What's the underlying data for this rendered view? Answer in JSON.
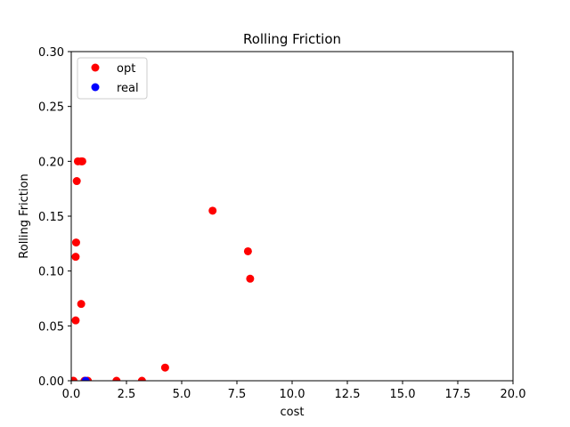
{
  "chart_data": {
    "type": "scatter",
    "title": "Rolling Friction",
    "xlabel": "cost",
    "ylabel": "Rolling Friction",
    "xlim": [
      0,
      20
    ],
    "ylim": [
      0,
      0.3
    ],
    "x_ticks": [
      "0.0",
      "2.5",
      "5.0",
      "7.5",
      "10.0",
      "12.5",
      "15.0",
      "17.5",
      "20.0"
    ],
    "y_ticks": [
      "0.00",
      "0.05",
      "0.10",
      "0.15",
      "0.20",
      "0.25",
      "0.30"
    ],
    "grid": false,
    "legend_position": "upper left",
    "series": [
      {
        "name": "opt",
        "color": "#ff0000",
        "points": [
          {
            "x": 0.1,
            "y": 0.0
          },
          {
            "x": 0.2,
            "y": 0.055
          },
          {
            "x": 0.2,
            "y": 0.113
          },
          {
            "x": 0.22,
            "y": 0.126
          },
          {
            "x": 0.25,
            "y": 0.182
          },
          {
            "x": 0.3,
            "y": 0.2
          },
          {
            "x": 0.45,
            "y": 0.2
          },
          {
            "x": 0.5,
            "y": 0.2
          },
          {
            "x": 0.45,
            "y": 0.07
          },
          {
            "x": 0.6,
            "y": 0.0
          },
          {
            "x": 0.75,
            "y": 0.0
          },
          {
            "x": 2.05,
            "y": 0.0
          },
          {
            "x": 3.2,
            "y": 0.0
          },
          {
            "x": 4.25,
            "y": 0.012
          },
          {
            "x": 6.4,
            "y": 0.155
          },
          {
            "x": 8.0,
            "y": 0.118
          },
          {
            "x": 8.1,
            "y": 0.093
          }
        ]
      },
      {
        "name": "real",
        "color": "#0000ff",
        "points": [
          {
            "x": 0.65,
            "y": 0.0
          }
        ]
      }
    ]
  }
}
